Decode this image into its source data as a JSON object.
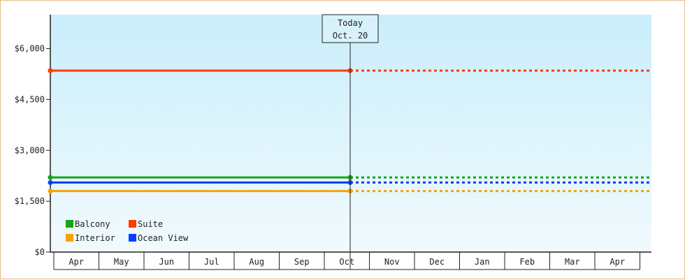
{
  "chart_data": {
    "type": "line",
    "title": "",
    "xlabel": "",
    "ylabel": "",
    "x_categories": [
      "Apr",
      "May",
      "Jun",
      "Jul",
      "Aug",
      "Sep",
      "Oct",
      "Nov",
      "Dec",
      "Jan",
      "Feb",
      "Mar",
      "Apr"
    ],
    "y_ticks": [
      "$0",
      "$1,500",
      "$3,000",
      "$4,500",
      "$6,000"
    ],
    "ylim": [
      0,
      7000
    ],
    "grid": false,
    "marker": {
      "label": "Today",
      "date": "Oct. 20",
      "x_index": 6
    },
    "series": [
      {
        "name": "Suite",
        "color": "#ff3b00",
        "value": 5350
      },
      {
        "name": "Balcony",
        "color": "#16a616",
        "value": 2200
      },
      {
        "name": "Ocean View",
        "color": "#0a3cff",
        "value": 2050
      },
      {
        "name": "Interior",
        "color": "#f5a300",
        "value": 1800
      }
    ],
    "legend": {
      "placement": "bottom-left",
      "order": [
        "Balcony",
        "Suite",
        "Interior",
        "Ocean View"
      ]
    }
  }
}
